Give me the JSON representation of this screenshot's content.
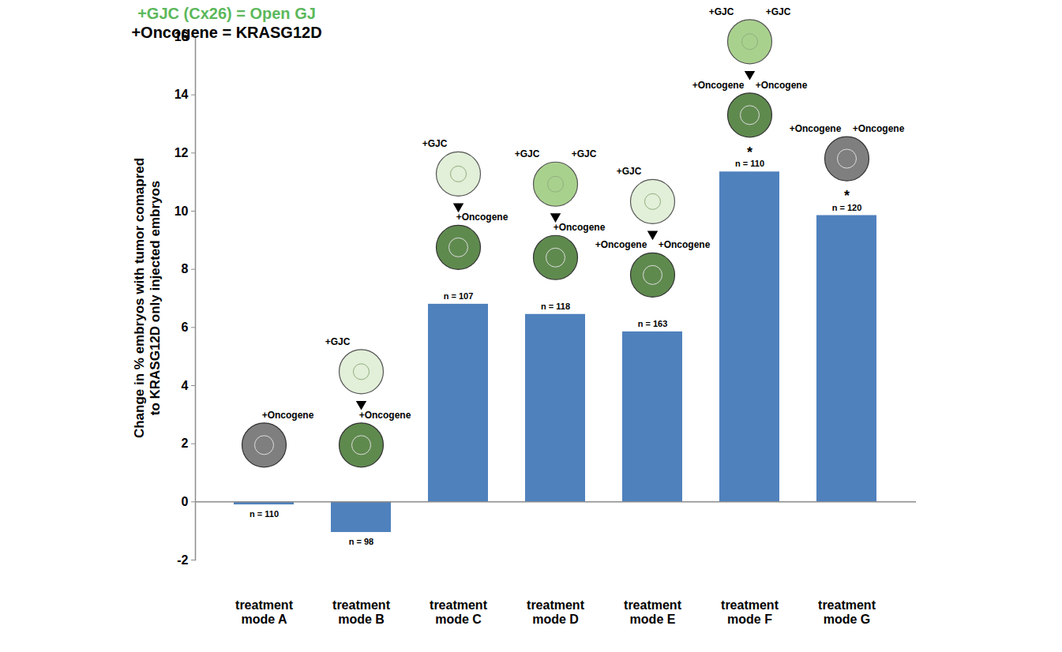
{
  "chart_data": {
    "type": "bar",
    "y_label": "Change in % embryos with tumor comapred to KRASG12D only injected embryos",
    "categories": [
      "treatment mode A",
      "treatment mode B",
      "treatment mode C",
      "treatment mode D",
      "treatment mode E",
      "treatment mode F",
      "treatment mode G"
    ],
    "values": [
      -0.1,
      -1.05,
      6.8,
      6.45,
      5.85,
      11.35,
      9.85
    ],
    "color": "#4f81bd",
    "ylim": [
      -2,
      16
    ],
    "yticks": [
      -2,
      0,
      2,
      4,
      6,
      8,
      10,
      12,
      14,
      16
    ],
    "grid": false,
    "n_labels": [
      "n = 110",
      "n = 98",
      "n = 107",
      "n = 118",
      "n = 163",
      "n = 110",
      "n = 120"
    ],
    "significance": [
      null,
      null,
      null,
      null,
      null,
      "*",
      "*"
    ],
    "two_cell_injections": [
      [],
      [
        "+GJC"
      ],
      [
        "+GJC"
      ],
      [
        "+GJC",
        "+GJC"
      ],
      [
        "+GJC"
      ],
      [
        "+GJC",
        "+GJC"
      ],
      []
    ],
    "eight_cell_injections": [
      [
        "+Oncogene"
      ],
      [
        "+Oncogene"
      ],
      [
        "+Oncogene"
      ],
      [
        "+Oncogene"
      ],
      [
        "+Oncogene",
        "+Oncogene"
      ],
      [
        "+Oncogene",
        "+Oncogene"
      ],
      [
        "+Oncogene",
        "+Oncogene"
      ]
    ],
    "annotations": [
      {
        "text": "+GJC (Cx26) = Open GJ",
        "color": "#5cb85c"
      },
      {
        "text": "+Oncogene = KRASG12D",
        "color": "#000000"
      }
    ]
  }
}
